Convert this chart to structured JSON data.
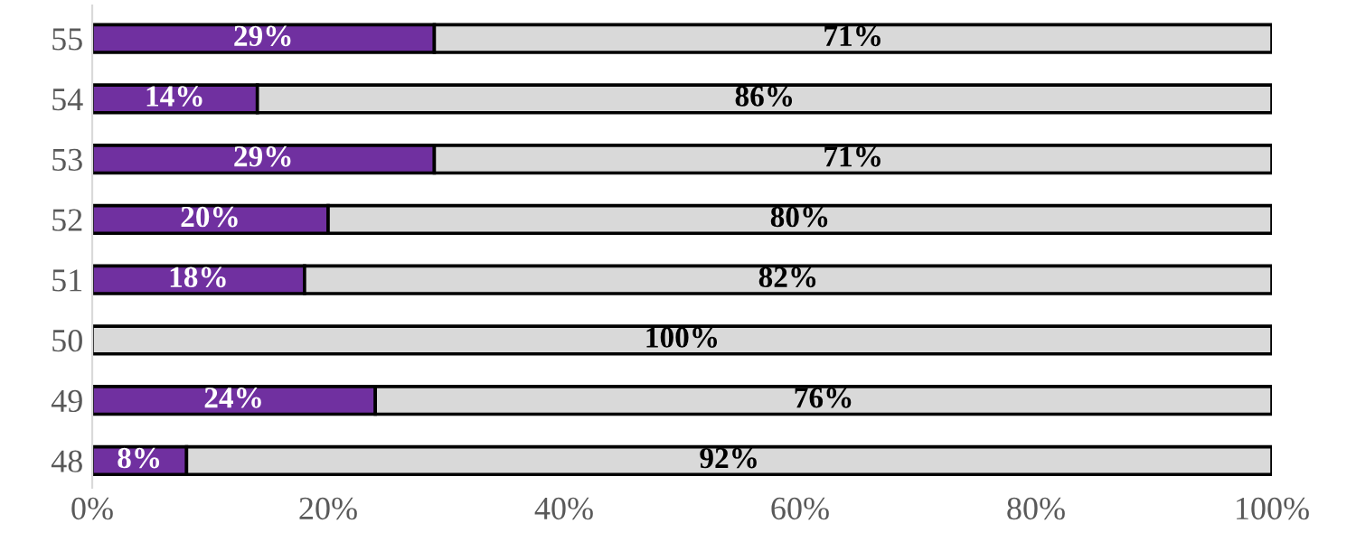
{
  "chart_data": {
    "type": "bar",
    "orientation": "horizontal",
    "stacked": true,
    "categories": [
      "55",
      "54",
      "53",
      "52",
      "51",
      "50",
      "49",
      "48"
    ],
    "series": [
      {
        "color": "#7030a0",
        "values": [
          29,
          14,
          29,
          20,
          18,
          0,
          24,
          8
        ],
        "value_labels": [
          "29%",
          "14%",
          "29%",
          "20%",
          "18%",
          null,
          "24%",
          "8%"
        ]
      },
      {
        "color": "#d9d9d9",
        "values": [
          71,
          86,
          71,
          80,
          82,
          100,
          76,
          92
        ],
        "value_labels": [
          "71%",
          "86%",
          "71%",
          "80%",
          "82%",
          "100%",
          "76%",
          "92%"
        ]
      }
    ],
    "xlim": [
      0,
      100
    ],
    "xticks": [
      {
        "value": 0,
        "label": "0%"
      },
      {
        "value": 20,
        "label": "20%"
      },
      {
        "value": 40,
        "label": "40%"
      },
      {
        "value": 60,
        "label": "60%"
      },
      {
        "value": 80,
        "label": "80%"
      },
      {
        "value": 100,
        "label": "100%"
      }
    ],
    "grid": false,
    "legend": false
  }
}
